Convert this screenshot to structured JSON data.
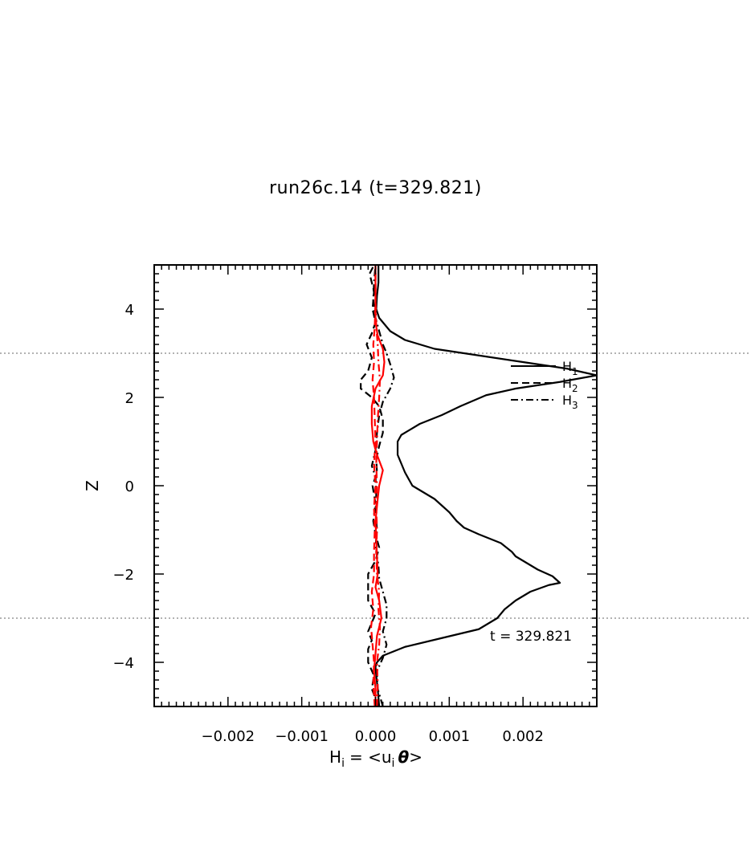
{
  "chart_data": {
    "type": "line",
    "title": "run26c.14 (t=329.821)",
    "xlabel_main": "H",
    "xlabel_sub": "i",
    "xlabel_eq": "= <u",
    "xlabel_eq_sub": "i",
    "xlabel_theta": "θ",
    "xlabel_close": ">",
    "ylabel": "Z",
    "xlim": [
      -0.003,
      0.003
    ],
    "ylim": [
      -5,
      5
    ],
    "x_ticks": [
      {
        "value": -0.002,
        "label": "−0.002"
      },
      {
        "value": -0.001,
        "label": "−0.001"
      },
      {
        "value": 0.0,
        "label": "0.000"
      },
      {
        "value": 0.001,
        "label": "0.001"
      },
      {
        "value": 0.002,
        "label": "0.002"
      }
    ],
    "y_ticks": [
      {
        "value": -4,
        "label": "−4"
      },
      {
        "value": -2,
        "label": "−2"
      },
      {
        "value": 0,
        "label": "0"
      },
      {
        "value": 2,
        "label": "2"
      },
      {
        "value": 4,
        "label": "4"
      }
    ],
    "reference_lines_y": [
      3,
      -3
    ],
    "annotation": "t = 329.821",
    "legend_position": "upper-right",
    "legend": [
      {
        "label": "H",
        "sub": "1",
        "dash": "solid"
      },
      {
        "label": "H",
        "sub": "2",
        "dash": "dashed"
      },
      {
        "label": "H",
        "sub": "3",
        "dash": "dashdot"
      }
    ],
    "series": [
      {
        "name": "H₁",
        "color": "#000000",
        "dash": "solid",
        "points": [
          [
            5e-05,
            -5.0
          ],
          [
            3e-05,
            -4.6
          ],
          [
            1e-05,
            -4.3
          ],
          [
            0.0,
            -4.1
          ],
          [
            2e-05,
            -4.0
          ],
          [
            0.0001,
            -3.85
          ],
          [
            0.0004,
            -3.65
          ],
          [
            0.0009,
            -3.45
          ],
          [
            0.0014,
            -3.25
          ],
          [
            0.00165,
            -3.0
          ],
          [
            0.00175,
            -2.8
          ],
          [
            0.0019,
            -2.6
          ],
          [
            0.0021,
            -2.4
          ],
          [
            0.00235,
            -2.25
          ],
          [
            0.0025,
            -2.2
          ],
          [
            0.0024,
            -2.05
          ],
          [
            0.0022,
            -1.9
          ],
          [
            0.0019,
            -1.6
          ],
          [
            0.00185,
            -1.5
          ],
          [
            0.0017,
            -1.3
          ],
          [
            0.0014,
            -1.1
          ],
          [
            0.0012,
            -0.95
          ],
          [
            0.0011,
            -0.8
          ],
          [
            0.001,
            -0.6
          ],
          [
            0.0009,
            -0.45
          ],
          [
            0.0008,
            -0.3
          ],
          [
            0.0006,
            -0.1
          ],
          [
            0.0005,
            0.0
          ],
          [
            0.0004,
            0.3
          ],
          [
            0.00035,
            0.5
          ],
          [
            0.0003,
            0.7
          ],
          [
            0.0003,
            0.85
          ],
          [
            0.0003,
            1.0
          ],
          [
            0.00035,
            1.15
          ],
          [
            0.0006,
            1.4
          ],
          [
            0.0009,
            1.6
          ],
          [
            0.00115,
            1.8
          ],
          [
            0.0015,
            2.05
          ],
          [
            0.0019,
            2.2
          ],
          [
            0.0025,
            2.35
          ],
          [
            0.003,
            2.5
          ],
          [
            0.0026,
            2.65
          ],
          [
            0.002,
            2.8
          ],
          [
            0.0012,
            3.0
          ],
          [
            0.0008,
            3.1
          ],
          [
            0.0004,
            3.3
          ],
          [
            0.0002,
            3.5
          ],
          [
            5e-05,
            3.8
          ],
          [
            1e-05,
            4.0
          ],
          [
            2e-05,
            4.3
          ],
          [
            4e-05,
            4.6
          ],
          [
            4e-05,
            5.0
          ]
        ]
      },
      {
        "name": "H₂",
        "color": "#000000",
        "dash": "dashed",
        "points": [
          [
            4e-05,
            -5.0
          ],
          [
            -5e-05,
            -4.6
          ],
          [
            -2e-05,
            -4.3
          ],
          [
            -0.0001,
            -4.0
          ],
          [
            -0.0001,
            -3.7
          ],
          [
            -5e-05,
            -3.5
          ],
          [
            -0.0001,
            -3.3
          ],
          [
            -5e-05,
            -3.1
          ],
          [
            0.0,
            -2.9
          ],
          [
            -0.0001,
            -2.6
          ],
          [
            -0.0001,
            -2.3
          ],
          [
            -0.0001,
            -2.0
          ],
          [
            0.0,
            -1.7
          ],
          [
            5e-05,
            -1.4
          ],
          [
            0.0,
            -1.1
          ],
          [
            -3e-05,
            -0.8
          ],
          [
            0.0,
            -0.4
          ],
          [
            -4e-05,
            0.0
          ],
          [
            2e-05,
            0.3
          ],
          [
            1e-05,
            0.6
          ],
          [
            5e-05,
            0.9
          ],
          [
            0.0001,
            1.2
          ],
          [
            0.0001,
            1.5
          ],
          [
            5e-05,
            1.8
          ],
          [
            -5e-05,
            2.0
          ],
          [
            -0.0002,
            2.2
          ],
          [
            -0.0002,
            2.4
          ],
          [
            -0.0001,
            2.6
          ],
          [
            -5e-05,
            2.9
          ],
          [
            -0.00012,
            3.2
          ],
          [
            -5e-05,
            3.45
          ],
          [
            0.0,
            3.7
          ],
          [
            -4e-05,
            4.0
          ],
          [
            -2e-05,
            4.4
          ],
          [
            -8e-05,
            4.8
          ],
          [
            -2e-05,
            5.0
          ]
        ]
      },
      {
        "name": "H₃",
        "color": "#000000",
        "dash": "dashdot",
        "points": [
          [
            0.0001,
            -5.0
          ],
          [
            3e-05,
            -4.6
          ],
          [
            2e-05,
            -4.2
          ],
          [
            0.0001,
            -3.9
          ],
          [
            0.00015,
            -3.6
          ],
          [
            0.0001,
            -3.3
          ],
          [
            0.00015,
            -3.0
          ],
          [
            0.00015,
            -2.7
          ],
          [
            0.0001,
            -2.4
          ],
          [
            5e-05,
            -2.1
          ],
          [
            4e-05,
            -1.8
          ],
          [
            0.0,
            -1.4
          ],
          [
            2e-05,
            -1.0
          ],
          [
            0.0,
            -0.6
          ],
          [
            1e-05,
            -0.2
          ],
          [
            0.0,
            0.2
          ],
          [
            -5e-05,
            0.45
          ],
          [
            0.0,
            0.8
          ],
          [
            2e-05,
            1.2
          ],
          [
            5e-05,
            1.6
          ],
          [
            0.0001,
            1.9
          ],
          [
            0.0002,
            2.2
          ],
          [
            0.00025,
            2.45
          ],
          [
            0.0002,
            2.75
          ],
          [
            0.00015,
            3.0
          ],
          [
            0.0001,
            3.2
          ],
          [
            5e-05,
            3.5
          ],
          [
            0.0,
            3.8
          ],
          [
            -3e-05,
            4.2
          ],
          [
            -2e-05,
            4.6
          ],
          [
            0.0,
            5.0
          ]
        ]
      },
      {
        "name": "",
        "color": "#ff0000",
        "dash": "solid",
        "points": [
          [
            0.0,
            -5.0
          ],
          [
            0.0,
            -4.6
          ],
          [
            -2e-05,
            -4.2
          ],
          [
            0.0,
            -3.8
          ],
          [
            2e-05,
            -3.4
          ],
          [
            8e-05,
            -3.0
          ],
          [
            5e-05,
            -2.6
          ],
          [
            0.0,
            -2.3
          ],
          [
            3e-05,
            -2.0
          ],
          [
            2e-05,
            -1.6
          ],
          [
            1e-05,
            -1.2
          ],
          [
            0.0,
            -0.8
          ],
          [
            3e-05,
            -0.3
          ],
          [
            5e-05,
            0.0
          ],
          [
            0.0001,
            0.35
          ],
          [
            2e-05,
            0.7
          ],
          [
            -3e-05,
            1.0
          ],
          [
            -5e-05,
            1.4
          ],
          [
            -5e-05,
            1.8
          ],
          [
            0.0,
            2.2
          ],
          [
            0.0001,
            2.5
          ],
          [
            0.00012,
            2.8
          ],
          [
            0.0001,
            3.1
          ],
          [
            3e-05,
            3.4
          ],
          [
            0.0,
            3.7
          ],
          [
            0.0,
            4.1
          ],
          [
            0.0,
            4.5
          ],
          [
            0.0,
            5.0
          ]
        ]
      },
      {
        "name": "",
        "color": "#ff0000",
        "dash": "dashed",
        "points": [
          [
            -1e-05,
            -5.0
          ],
          [
            -3e-05,
            -4.5
          ],
          [
            -2e-05,
            -4.0
          ],
          [
            -4e-05,
            -3.6
          ],
          [
            -6e-05,
            -3.2
          ],
          [
            -3e-05,
            -2.8
          ],
          [
            -5e-05,
            -2.4
          ],
          [
            -2e-05,
            -2.0
          ],
          [
            -2e-05,
            -1.5
          ],
          [
            -1e-05,
            -1.0
          ],
          [
            -2e-05,
            -0.5
          ],
          [
            0.0,
            0.0
          ],
          [
            -2e-05,
            0.5
          ],
          [
            0.0,
            1.0
          ],
          [
            -1e-05,
            1.5
          ],
          [
            -2e-05,
            2.0
          ],
          [
            -4e-05,
            2.4
          ],
          [
            -2e-05,
            2.8
          ],
          [
            -3e-05,
            3.2
          ],
          [
            -1e-05,
            3.6
          ],
          [
            0.0,
            4.2
          ],
          [
            0.0,
            5.0
          ]
        ]
      },
      {
        "name": "",
        "color": "#ff0000",
        "dash": "dashdot",
        "points": [
          [
            2e-05,
            -5.0
          ],
          [
            3e-05,
            -4.5
          ],
          [
            2e-05,
            -4.0
          ],
          [
            5e-05,
            -3.6
          ],
          [
            6e-05,
            -3.2
          ],
          [
            4e-05,
            -2.8
          ],
          [
            5e-05,
            -2.4
          ],
          [
            2e-05,
            -2.0
          ],
          [
            1e-05,
            -1.5
          ],
          [
            2e-05,
            -1.0
          ],
          [
            1e-05,
            -0.5
          ],
          [
            2e-05,
            0.0
          ],
          [
            1e-05,
            0.5
          ],
          [
            2e-05,
            1.0
          ],
          [
            3e-05,
            1.5
          ],
          [
            5e-05,
            2.0
          ],
          [
            6e-05,
            2.4
          ],
          [
            4e-05,
            2.8
          ],
          [
            3e-05,
            3.2
          ],
          [
            1e-05,
            3.6
          ],
          [
            0.0,
            4.2
          ],
          [
            0.0,
            5.0
          ]
        ]
      }
    ]
  }
}
